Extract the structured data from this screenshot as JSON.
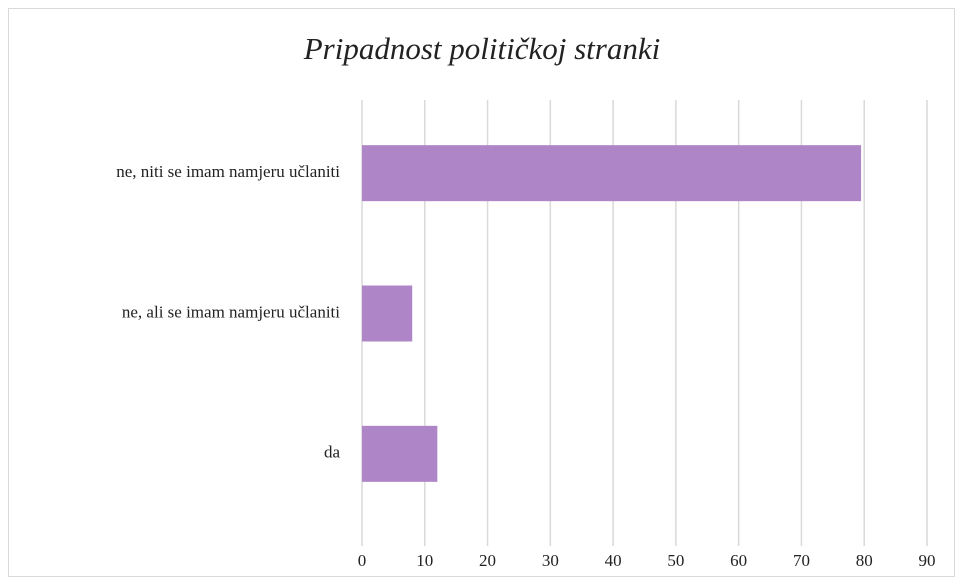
{
  "chart_data": {
    "type": "bar",
    "orientation": "horizontal",
    "title": "Pripadnost političkoj stranki",
    "categories": [
      "ne, niti se imam namjeru učlaniti",
      "ne, ali se imam namjeru učlaniti",
      "da"
    ],
    "values": [
      79.5,
      8,
      12
    ],
    "color": "#ae85c6",
    "xlim": [
      0,
      90
    ],
    "xticks": [
      0,
      10,
      20,
      30,
      40,
      50,
      60,
      70,
      80,
      90
    ],
    "grid": true
  }
}
